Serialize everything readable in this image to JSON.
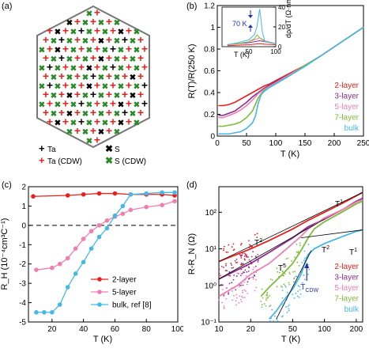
{
  "panels": {
    "a": {
      "label": "(a)",
      "legend": [
        {
          "mark": "+",
          "color": "#000000",
          "text": "Ta"
        },
        {
          "mark": "✖",
          "color": "#000000",
          "text": "S"
        },
        {
          "mark": "+",
          "color": "#e8201c",
          "text": "Ta (CDW)"
        },
        {
          "mark": "✖",
          "color": "#2a8a2a",
          "text": "S (CDW)"
        }
      ]
    },
    "b": {
      "label": "(b)",
      "inset_annotation": "70 K",
      "legend": [
        "2-layer",
        "3-layer",
        "5-layer",
        "7-layer",
        "bulk"
      ]
    },
    "c": {
      "label": "(c)",
      "legend": [
        "2-layer",
        "5-layer",
        "bulk, ref [8]"
      ]
    },
    "d": {
      "label": "(d)",
      "legend": [
        "2-layer",
        "3-layer",
        "5-layer",
        "7-layer",
        "bulk"
      ],
      "annotations": [
        "T",
        "T",
        "T",
        "T",
        "T",
        "T",
        "CDW"
      ]
    }
  },
  "colors": {
    "2-layer": "#e8201c",
    "3-layer": "#8b2c8f",
    "5-layer": "#f07fb0",
    "7-layer": "#7fbb3a",
    "bulk": "#45b8e6",
    "cdw_arrow": "#2030b0"
  },
  "chart_data": [
    {
      "type": "line",
      "panel": "b",
      "xlabel": "T (K)",
      "ylabel": "R(T)/R(250 K)",
      "xlim": [
        0,
        250
      ],
      "ylim": [
        0,
        1.2
      ],
      "x_ticks": [
        "0",
        "50",
        "100",
        "150",
        "200",
        "250"
      ],
      "y_ticks": [
        "0",
        "0.2",
        "0.4",
        "0.6",
        "0.8",
        "1",
        "1.2"
      ],
      "series": [
        {
          "name": "2-layer",
          "x": [
            2,
            10,
            20,
            30,
            40,
            50,
            60,
            70,
            80,
            90,
            100,
            125,
            150,
            175,
            200,
            225,
            250
          ],
          "y": [
            0.28,
            0.28,
            0.29,
            0.31,
            0.34,
            0.37,
            0.4,
            0.43,
            0.46,
            0.48,
            0.51,
            0.58,
            0.65,
            0.73,
            0.82,
            0.91,
            1.0
          ]
        },
        {
          "name": "3-layer",
          "x": [
            2,
            10,
            20,
            30,
            40,
            50,
            60,
            70,
            80,
            90,
            100,
            125,
            150,
            175,
            200,
            225,
            250
          ],
          "y": [
            0.19,
            0.19,
            0.21,
            0.23,
            0.27,
            0.31,
            0.36,
            0.4,
            0.44,
            0.47,
            0.5,
            0.57,
            0.65,
            0.73,
            0.82,
            0.91,
            1.0
          ]
        },
        {
          "name": "5-layer",
          "x": [
            2,
            10,
            20,
            30,
            40,
            50,
            60,
            70,
            80,
            90,
            100,
            125,
            150,
            175,
            200,
            225,
            250
          ],
          "y": [
            0.17,
            0.17,
            0.19,
            0.21,
            0.24,
            0.28,
            0.33,
            0.39,
            0.43,
            0.46,
            0.49,
            0.57,
            0.65,
            0.73,
            0.82,
            0.91,
            1.0
          ]
        },
        {
          "name": "7-layer",
          "x": [
            2,
            10,
            20,
            30,
            40,
            50,
            60,
            65,
            70,
            75,
            80,
            90,
            100,
            125,
            150,
            175,
            200,
            225,
            250
          ],
          "y": [
            0.09,
            0.09,
            0.1,
            0.11,
            0.13,
            0.17,
            0.23,
            0.29,
            0.35,
            0.39,
            0.42,
            0.45,
            0.48,
            0.56,
            0.65,
            0.73,
            0.82,
            0.91,
            1.0
          ]
        },
        {
          "name": "bulk",
          "x": [
            2,
            10,
            20,
            30,
            40,
            50,
            60,
            65,
            70,
            75,
            80,
            90,
            100,
            125,
            150,
            175,
            200,
            225,
            250
          ],
          "y": [
            0.02,
            0.02,
            0.02,
            0.03,
            0.04,
            0.07,
            0.12,
            0.18,
            0.3,
            0.38,
            0.41,
            0.45,
            0.48,
            0.56,
            0.64,
            0.73,
            0.82,
            0.91,
            1.0
          ]
        }
      ]
    },
    {
      "type": "line",
      "panel": "b-inset",
      "xlabel": "T (K)",
      "ylabel": "dρ/dT (Ω·nm/K)",
      "xlim": [
        0,
        100
      ],
      "ylim": [
        0,
        40
      ],
      "x_ticks": [
        "50",
        "100"
      ],
      "y_ticks": [
        "0",
        "20",
        "40"
      ],
      "series": [
        {
          "name": "2-layer",
          "x": [
            10,
            30,
            50,
            60,
            70,
            80,
            100
          ],
          "y": [
            1,
            1.5,
            2,
            2.5,
            3,
            2.5,
            2
          ]
        },
        {
          "name": "3-layer",
          "x": [
            10,
            30,
            50,
            60,
            70,
            80,
            100
          ],
          "y": [
            2,
            3,
            4,
            5,
            6,
            5,
            3
          ]
        },
        {
          "name": "5-layer",
          "x": [
            10,
            30,
            50,
            60,
            70,
            80,
            100
          ],
          "y": [
            2,
            3,
            5,
            7,
            9,
            6,
            3
          ]
        },
        {
          "name": "7-layer",
          "x": [
            10,
            30,
            50,
            60,
            65,
            70,
            80,
            100
          ],
          "y": [
            2,
            3,
            5,
            8,
            12,
            9,
            5,
            3
          ]
        },
        {
          "name": "bulk",
          "x": [
            10,
            30,
            50,
            60,
            65,
            70,
            72,
            75,
            80,
            100
          ],
          "y": [
            2,
            4,
            7,
            12,
            20,
            38,
            30,
            15,
            5,
            3
          ]
        }
      ]
    },
    {
      "type": "line",
      "panel": "c",
      "xlabel": "T (K)",
      "ylabel": "R_H (10⁻⁴cm³C⁻¹)",
      "xlim": [
        5,
        100
      ],
      "ylim": [
        -5,
        2
      ],
      "x_ticks": [
        "20",
        "40",
        "60",
        "80",
        "100"
      ],
      "y_ticks": [
        "-5",
        "-4",
        "-3",
        "-2",
        "-1",
        "0",
        "1",
        "2"
      ],
      "series": [
        {
          "name": "2-layer",
          "x": [
            8,
            30,
            40,
            50,
            60,
            70,
            80,
            90,
            98
          ],
          "y": [
            1.5,
            1.55,
            1.6,
            1.65,
            1.65,
            1.6,
            1.6,
            1.6,
            1.55
          ]
        },
        {
          "name": "5-layer",
          "x": [
            10,
            20,
            25,
            30,
            35,
            40,
            45,
            50,
            55,
            60,
            65,
            70,
            80,
            90,
            98
          ],
          "y": [
            -2.3,
            -2.2,
            -2.0,
            -1.7,
            -1.2,
            -0.7,
            -0.3,
            0.0,
            0.25,
            0.45,
            0.6,
            0.8,
            0.95,
            1.05,
            1.25
          ]
        },
        {
          "name": "bulk, ref [8]",
          "x": [
            10,
            15,
            20,
            25,
            30,
            35,
            40,
            45,
            50,
            55,
            60,
            65,
            70,
            80,
            90,
            98
          ],
          "y": [
            -4.5,
            -4.5,
            -4.5,
            -4.1,
            -3.2,
            -2.5,
            -1.9,
            -1.2,
            -0.6,
            -0.15,
            0.5,
            1.0,
            1.6,
            1.65,
            1.7,
            1.7
          ]
        }
      ]
    },
    {
      "type": "line",
      "panel": "d",
      "xlabel": "T (K)",
      "ylabel": "R-R_N (Ω)",
      "xscale": "log",
      "yscale": "log",
      "xlim": [
        10,
        230
      ],
      "ylim": [
        0.1,
        500
      ],
      "x_ticks": [
        "10",
        "20",
        "50",
        "100",
        "200"
      ],
      "y_ticks": [
        "10⁻¹",
        "10⁰",
        "10¹",
        "10²"
      ],
      "series": [
        {
          "name": "2-layer",
          "x": [
            10,
            20,
            30,
            50,
            70,
            100,
            150,
            200,
            230
          ],
          "y": [
            4.5,
            10,
            17,
            35,
            60,
            100,
            180,
            280,
            350
          ]
        },
        {
          "name": "3-layer",
          "x": [
            10,
            20,
            30,
            50,
            70,
            100,
            150,
            200,
            230
          ],
          "y": [
            1.5,
            4.0,
            8,
            20,
            40,
            65,
            120,
            200,
            240
          ]
        },
        {
          "name": "5-layer",
          "x": [
            10,
            15,
            20,
            30,
            40,
            50,
            60,
            70,
            100,
            150,
            200,
            230
          ],
          "y": [
            0.5,
            1.0,
            2.0,
            4.0,
            8,
            14,
            22,
            35,
            70,
            120,
            190,
            220
          ]
        },
        {
          "name": "7-layer",
          "x": [
            25,
            30,
            40,
            50,
            60,
            70,
            80,
            100,
            150,
            200,
            230
          ],
          "y": [
            0.5,
            0.9,
            2.0,
            4.0,
            9,
            20,
            35,
            55,
            105,
            170,
            200
          ]
        },
        {
          "name": "bulk",
          "x": [
            30,
            35,
            40,
            50,
            60,
            65,
            70,
            80,
            100,
            150,
            200,
            230
          ],
          "y": [
            0.12,
            0.2,
            0.35,
            0.8,
            2.0,
            4.0,
            7,
            10,
            14,
            22,
            30,
            33
          ]
        }
      ]
    }
  ]
}
